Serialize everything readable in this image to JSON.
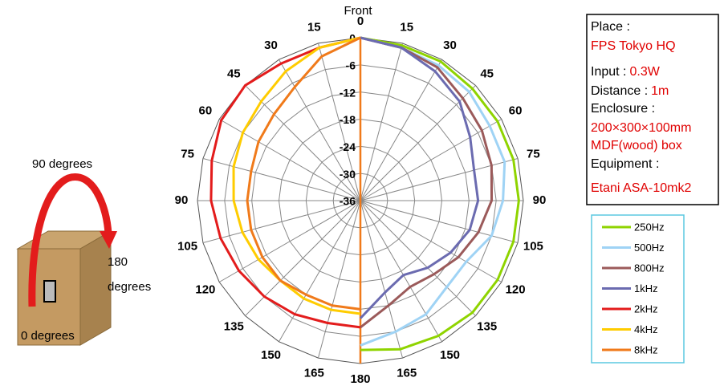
{
  "chart_data": {
    "type": "polar",
    "annotation": "Front",
    "angles": [
      0,
      15,
      30,
      45,
      60,
      75,
      90,
      105,
      120,
      135,
      150,
      165,
      180
    ],
    "rlim": [
      -36,
      0
    ],
    "rticks": [
      0,
      -6,
      -12,
      -18,
      -24,
      -30,
      -36
    ],
    "grid": true,
    "series": [
      {
        "name": "250Hz",
        "color": "#8fd400",
        "side": "right",
        "values": [
          0,
          -0.5,
          -0.5,
          -1,
          -1,
          -1,
          -1,
          -1,
          -1,
          -1,
          -1.5,
          -2,
          -3
        ]
      },
      {
        "name": "500Hz",
        "color": "#9fd3f5",
        "side": "right",
        "values": [
          0,
          -1,
          -1.5,
          -2,
          -3,
          -3,
          -4.5,
          -6,
          -9,
          -9,
          -7,
          -6,
          -4
        ]
      },
      {
        "name": "800Hz",
        "color": "#9b5a5a",
        "side": "right",
        "values": [
          0,
          -1,
          -2,
          -4,
          -5,
          -6,
          -7,
          -9,
          -11,
          -13,
          -14,
          -12,
          -8
        ]
      },
      {
        "name": "1kHz",
        "color": "#6b6bb0",
        "side": "right",
        "values": [
          0,
          -1,
          -3,
          -5,
          -8,
          -10,
          -10,
          -11,
          -13,
          -15,
          -17,
          -15,
          -10
        ]
      },
      {
        "name": "2kHz",
        "color": "#e31c1c",
        "side": "left",
        "values": [
          0,
          -1,
          -1,
          0,
          -0.5,
          -2,
          -3,
          -4,
          -5,
          -6,
          -7,
          -8,
          -8
        ]
      },
      {
        "name": "4kHz",
        "color": "#ffcc00",
        "side": "left",
        "values": [
          0,
          -1,
          -3,
          -5,
          -6,
          -7,
          -8,
          -9,
          -10,
          -11,
          -11,
          -11,
          -11
        ]
      },
      {
        "name": "8kHz",
        "color": "#f07a1a",
        "side": "left",
        "values": [
          0,
          -3,
          -7,
          -9,
          -10,
          -11,
          -11,
          -11,
          -11,
          -11,
          -12,
          -12,
          -12
        ]
      }
    ]
  },
  "info": [
    "Place :",
    "FPS Tokyo HQ",
    "Input :",
    "0.3W",
    "Distance :",
    "1m",
    "Enclosure :",
    "200×300×100mm",
    "MDF(wood) box",
    "Equipment :",
    "Etani ASA-10mk2"
  ],
  "diagram": [
    "90 degrees",
    "180",
    "degrees",
    "0 degrees"
  ]
}
